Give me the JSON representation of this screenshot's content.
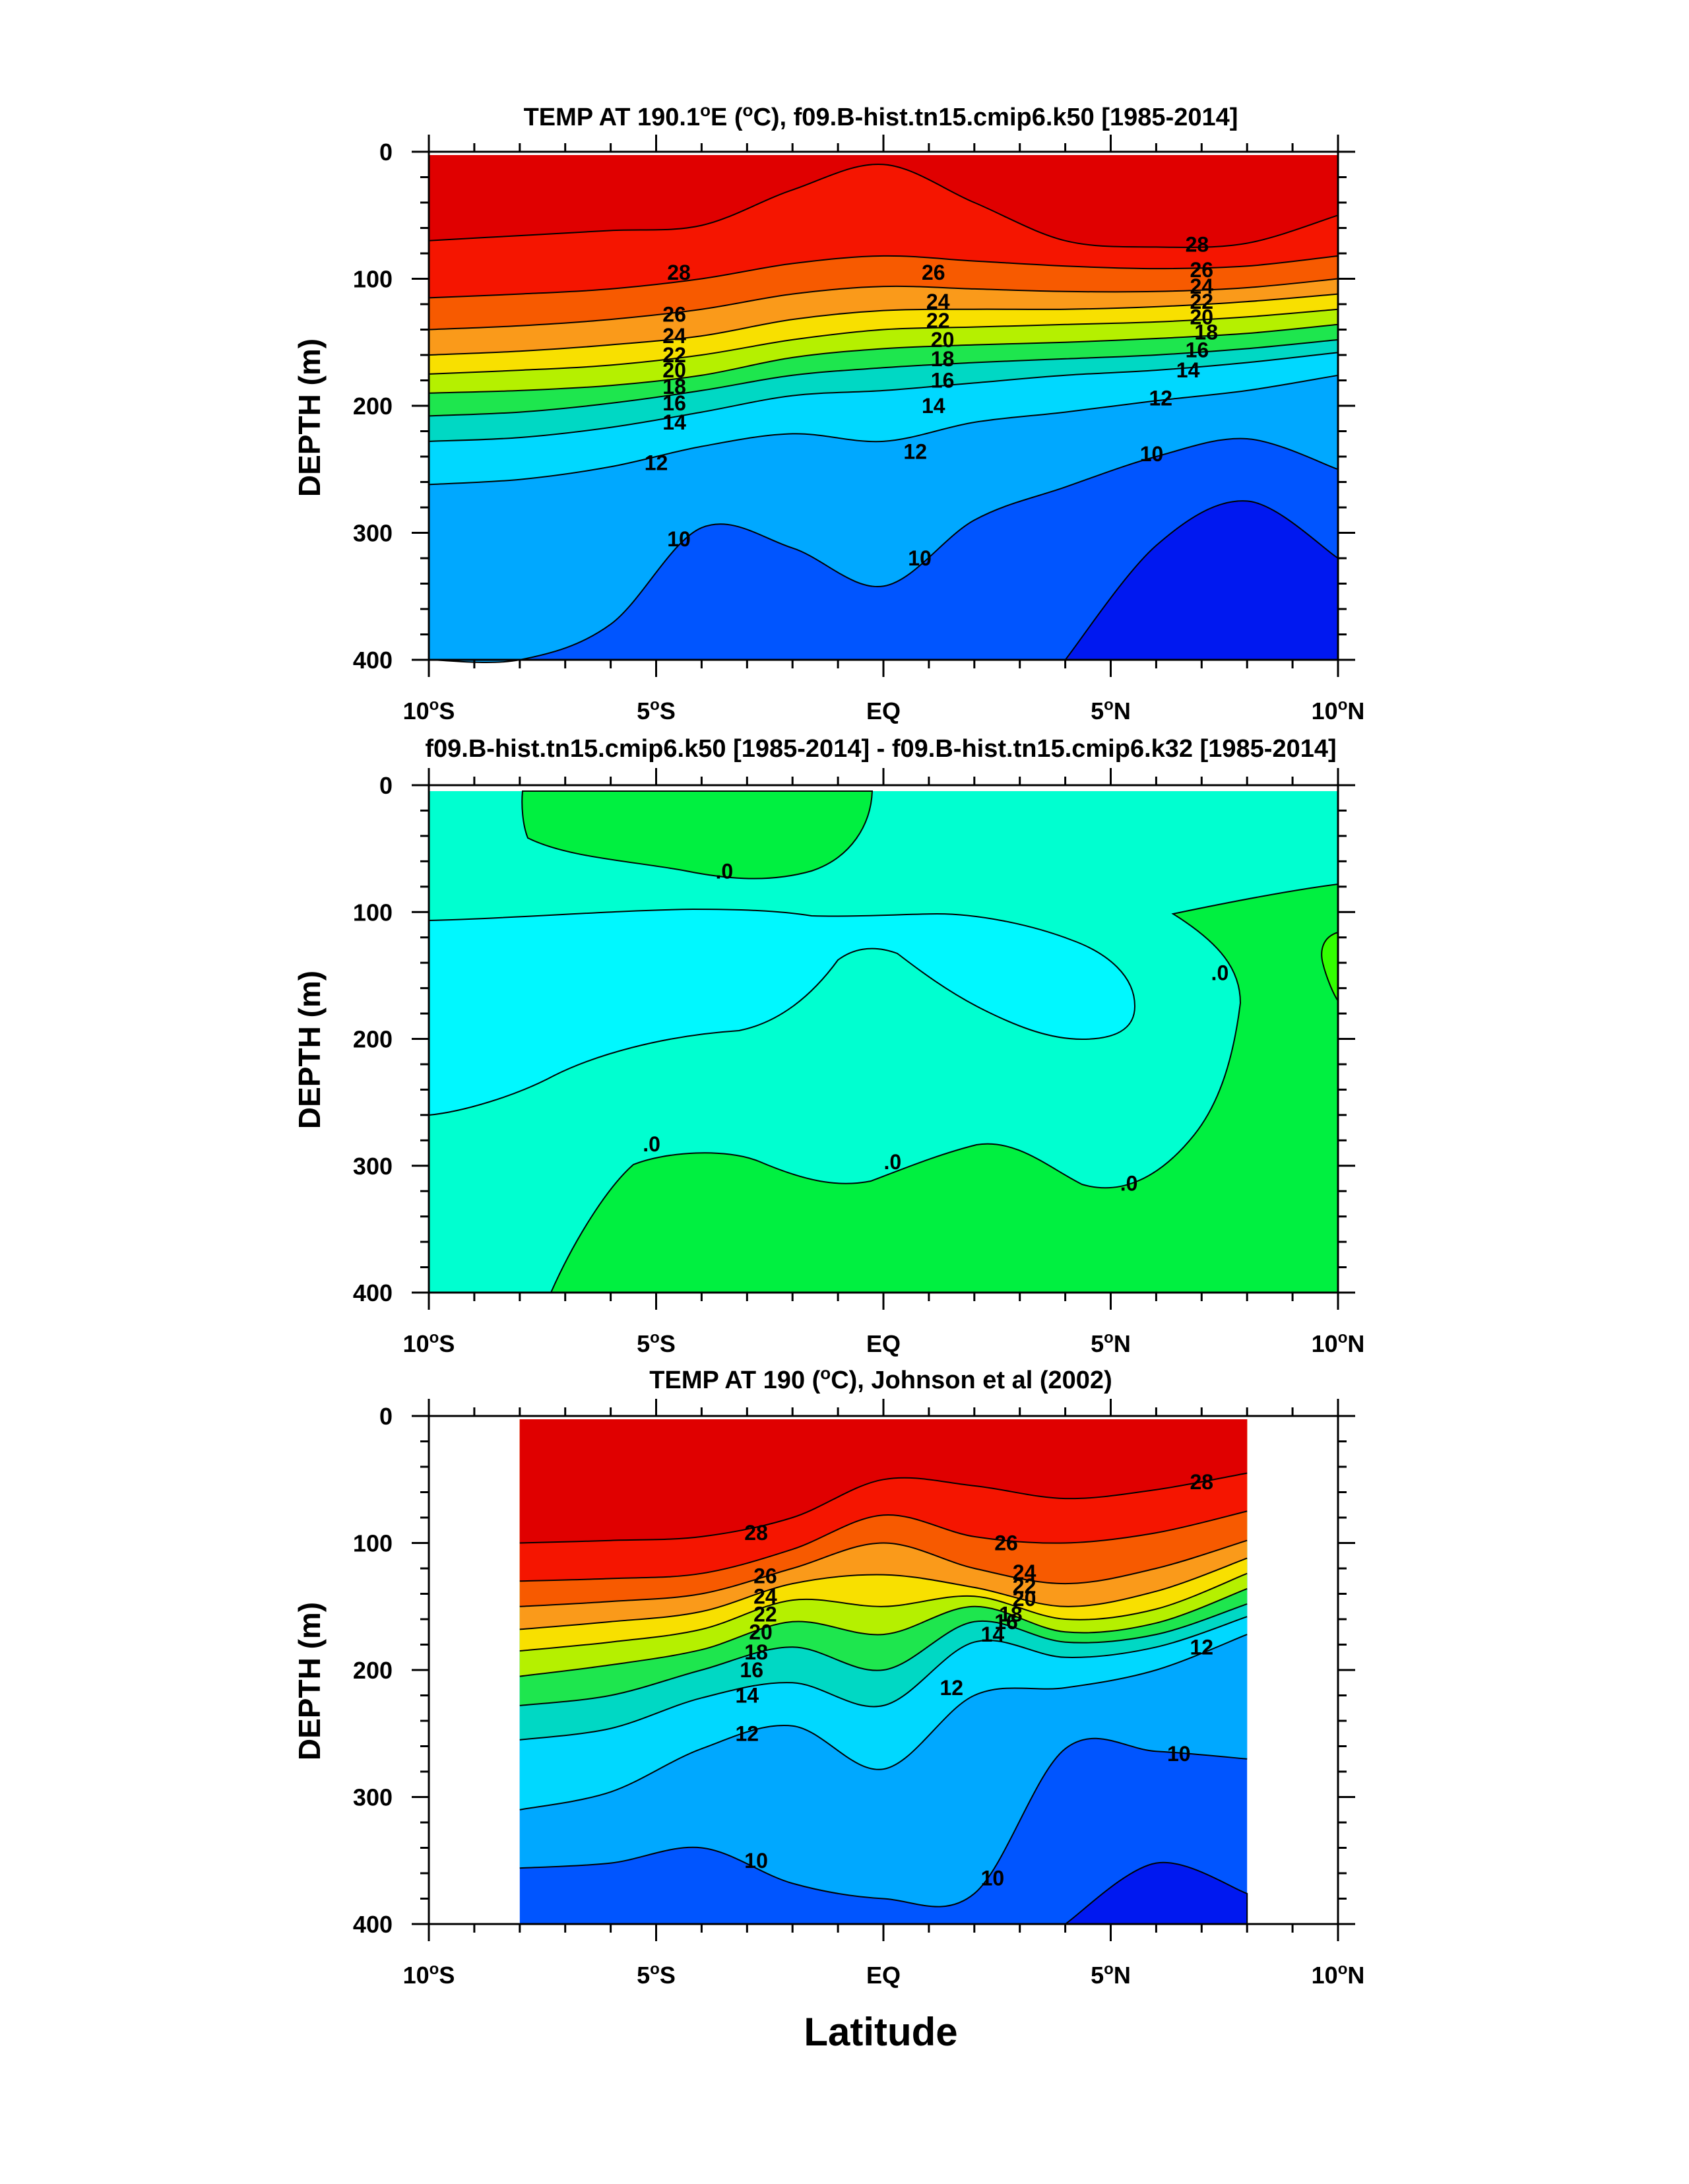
{
  "figure": {
    "xlabel": "Latitude"
  },
  "colors": {
    "t_ge_28": "#e00000",
    "t_26_28": "#f51500",
    "t_24_26": "#f75a00",
    "t_22_24": "#fa9a1a",
    "t_20_22": "#f8e000",
    "t_18_20": "#b5f000",
    "t_16_18": "#1ee64e",
    "t_14_16": "#00d8c4",
    "t_12_14": "#00d8ff",
    "t_10_12": "#00a8ff",
    "t_lt_10": "#0055ff",
    "t_deep": "#0018f0",
    "diff_pos": "#00f040",
    "diff_zero": "#00ffd0",
    "diff_neg": "#00f8ff",
    "diff_pos2": "#33ff00"
  },
  "chart_data": [
    {
      "type": "contour",
      "title_prefix": "TEMP AT 190.1",
      "title_degree": "o",
      "title_mid": "E (",
      "title_degree2": "o",
      "title_suffix": "C), f09.B-hist.tn15.cmip6.k50 [1985-2014]",
      "ylabel": "DEPTH (m)",
      "xlim": [
        -10,
        10
      ],
      "ylim": [
        400,
        0
      ],
      "xticks": [
        {
          "value": -10,
          "label": "10",
          "sup": "o",
          "suffix": "S"
        },
        {
          "value": -5,
          "label": "5",
          "sup": "o",
          "suffix": "S"
        },
        {
          "value": 0,
          "label": "EQ",
          "sup": "",
          "suffix": ""
        },
        {
          "value": 5,
          "label": "5",
          "sup": "o",
          "suffix": "N"
        },
        {
          "value": 10,
          "label": "10",
          "sup": "o",
          "suffix": "N"
        }
      ],
      "yticks": [
        0,
        100,
        200,
        300,
        400
      ],
      "contour_levels": [
        10,
        12,
        14,
        16,
        18,
        20,
        22,
        24,
        26,
        28
      ],
      "contour_labels": [
        "28",
        "26",
        "24",
        "22",
        "20",
        "18",
        "16",
        "14",
        "12",
        "10"
      ],
      "isotherms": [
        {
          "level": 28,
          "depth": [
            70,
            66,
            62,
            58,
            30,
            10,
            40,
            70,
            75,
            72,
            50
          ]
        },
        {
          "level": 26,
          "depth": [
            115,
            112,
            108,
            100,
            88,
            82,
            86,
            90,
            92,
            90,
            82
          ]
        },
        {
          "level": 24,
          "depth": [
            140,
            137,
            132,
            124,
            112,
            106,
            108,
            110,
            110,
            107,
            100
          ]
        },
        {
          "level": 22,
          "depth": [
            160,
            157,
            152,
            145,
            132,
            125,
            124,
            124,
            122,
            118,
            112
          ]
        },
        {
          "level": 20,
          "depth": [
            175,
            172,
            168,
            160,
            148,
            140,
            138,
            136,
            134,
            130,
            124
          ]
        },
        {
          "level": 18,
          "depth": [
            190,
            188,
            184,
            176,
            162,
            155,
            152,
            150,
            147,
            143,
            136
          ]
        },
        {
          "level": 16,
          "depth": [
            208,
            205,
            198,
            188,
            176,
            170,
            166,
            163,
            160,
            155,
            148
          ]
        },
        {
          "level": 14,
          "depth": [
            228,
            225,
            217,
            205,
            192,
            188,
            182,
            176,
            172,
            166,
            158
          ]
        },
        {
          "level": 12,
          "depth": [
            262,
            258,
            248,
            232,
            222,
            228,
            213,
            205,
            196,
            188,
            176
          ]
        },
        {
          "level": 10,
          "depth": [
            410,
            408,
            372,
            296,
            312,
            342,
            290,
            264,
            240,
            226,
            250
          ]
        }
      ],
      "deep_core": {
        "level": 8,
        "depth": [
          null,
          null,
          null,
          null,
          null,
          null,
          null,
          400,
          310,
          275,
          320
        ]
      },
      "label_positions": [
        {
          "text": "28",
          "lat": -4.5,
          "depth": 95
        },
        {
          "text": "26",
          "lat": -4.6,
          "depth": 128
        },
        {
          "text": "24",
          "lat": -4.6,
          "depth": 145
        },
        {
          "text": "22",
          "lat": -4.6,
          "depth": 160
        },
        {
          "text": "20",
          "lat": -4.6,
          "depth": 172
        },
        {
          "text": "18",
          "lat": -4.6,
          "depth": 185
        },
        {
          "text": "16",
          "lat": -4.6,
          "depth": 198
        },
        {
          "text": "14",
          "lat": -4.6,
          "depth": 213
        },
        {
          "text": "12",
          "lat": -5.0,
          "depth": 245
        },
        {
          "text": "10",
          "lat": -4.5,
          "depth": 305
        },
        {
          "text": "26",
          "lat": 1.1,
          "depth": 95
        },
        {
          "text": "24",
          "lat": 1.2,
          "depth": 118
        },
        {
          "text": "22",
          "lat": 1.2,
          "depth": 133
        },
        {
          "text": "20",
          "lat": 1.3,
          "depth": 148
        },
        {
          "text": "18",
          "lat": 1.3,
          "depth": 163
        },
        {
          "text": "16",
          "lat": 1.3,
          "depth": 180
        },
        {
          "text": "14",
          "lat": 1.1,
          "depth": 200
        },
        {
          "text": "12",
          "lat": 0.7,
          "depth": 236
        },
        {
          "text": "10",
          "lat": 0.8,
          "depth": 320
        },
        {
          "text": "28",
          "lat": 6.9,
          "depth": 73
        },
        {
          "text": "26",
          "lat": 7.0,
          "depth": 93
        },
        {
          "text": "24",
          "lat": 7.0,
          "depth": 106
        },
        {
          "text": "22",
          "lat": 7.0,
          "depth": 118
        },
        {
          "text": "20",
          "lat": 7.0,
          "depth": 130
        },
        {
          "text": "18",
          "lat": 7.1,
          "depth": 142
        },
        {
          "text": "16",
          "lat": 6.9,
          "depth": 156
        },
        {
          "text": "14",
          "lat": 6.7,
          "depth": 172
        },
        {
          "text": "12",
          "lat": 6.1,
          "depth": 194
        },
        {
          "text": "10",
          "lat": 5.9,
          "depth": 238
        }
      ]
    },
    {
      "type": "contour",
      "title": "f09.B-hist.tn15.cmip6.k50 [1985-2014] - f09.B-hist.tn15.cmip6.k32 [1985-2014]",
      "ylabel": "DEPTH (m)",
      "xlim": [
        -10,
        10
      ],
      "ylim": [
        400,
        0
      ],
      "xticks": [
        {
          "value": -10,
          "label": "10",
          "sup": "o",
          "suffix": "S"
        },
        {
          "value": -5,
          "label": "5",
          "sup": "o",
          "suffix": "S"
        },
        {
          "value": 0,
          "label": "EQ",
          "sup": "",
          "suffix": ""
        },
        {
          "value": 5,
          "label": "5",
          "sup": "o",
          "suffix": "N"
        },
        {
          "value": 10,
          "label": "10",
          "sup": "o",
          "suffix": "N"
        }
      ],
      "yticks": [
        0,
        100,
        200,
        300,
        400
      ],
      "contour_labels": [
        ".0",
        ".0",
        ".0",
        ".0",
        ".0"
      ],
      "label_positions": [
        {
          "text": ".0",
          "lat": -3.5,
          "depth": 68
        },
        {
          "text": ".0",
          "lat": 7.4,
          "depth": 148
        },
        {
          "text": ".0",
          "lat": -5.1,
          "depth": 283
        },
        {
          "text": ".0",
          "lat": 0.2,
          "depth": 297
        },
        {
          "text": ".0",
          "lat": 5.4,
          "depth": 314
        }
      ]
    },
    {
      "type": "contour",
      "title_prefix": "TEMP AT 190 (",
      "title_degree": "o",
      "title_suffix": "C), Johnson et al (2002)",
      "ylabel": "DEPTH (m)",
      "xlim": [
        -10,
        10
      ],
      "ylim": [
        400,
        0
      ],
      "data_xlim": [
        -8,
        8
      ],
      "xticks": [
        {
          "value": -10,
          "label": "10",
          "sup": "o",
          "suffix": "S"
        },
        {
          "value": -5,
          "label": "5",
          "sup": "o",
          "suffix": "S"
        },
        {
          "value": 0,
          "label": "EQ",
          "sup": "",
          "suffix": ""
        },
        {
          "value": 5,
          "label": "5",
          "sup": "o",
          "suffix": "N"
        },
        {
          "value": 10,
          "label": "10",
          "sup": "o",
          "suffix": "N"
        }
      ],
      "yticks": [
        0,
        100,
        200,
        300,
        400
      ],
      "contour_levels": [
        10,
        12,
        14,
        16,
        18,
        20,
        22,
        24,
        26,
        28
      ],
      "contour_labels": [
        "28",
        "26",
        "24",
        "22",
        "20",
        "18",
        "16",
        "14",
        "12",
        "10"
      ],
      "isotherms_lat": [
        -8,
        -6,
        -4,
        -2,
        0,
        2,
        4,
        6,
        8
      ],
      "isotherms": [
        {
          "level": 28,
          "depth": [
            100,
            98,
            95,
            80,
            50,
            55,
            65,
            58,
            45
          ]
        },
        {
          "level": 26,
          "depth": [
            130,
            128,
            124,
            105,
            78,
            95,
            100,
            92,
            75
          ]
        },
        {
          "level": 24,
          "depth": [
            150,
            146,
            140,
            120,
            100,
            120,
            132,
            120,
            98
          ]
        },
        {
          "level": 22,
          "depth": [
            168,
            162,
            154,
            132,
            125,
            135,
            150,
            138,
            112
          ]
        },
        {
          "level": 20,
          "depth": [
            185,
            178,
            168,
            145,
            150,
            142,
            160,
            152,
            124
          ]
        },
        {
          "level": 18,
          "depth": [
            205,
            196,
            184,
            162,
            172,
            150,
            170,
            163,
            136
          ]
        },
        {
          "level": 16,
          "depth": [
            228,
            220,
            200,
            182,
            200,
            162,
            178,
            172,
            148
          ]
        },
        {
          "level": 14,
          "depth": [
            255,
            246,
            222,
            210,
            228,
            178,
            190,
            182,
            158
          ]
        },
        {
          "level": 12,
          "depth": [
            310,
            296,
            262,
            244,
            278,
            220,
            214,
            200,
            172
          ]
        },
        {
          "level": 10,
          "depth": [
            356,
            352,
            340,
            368,
            380,
            376,
            262,
            264,
            270
          ]
        }
      ],
      "deep_core": {
        "level": 8,
        "depth": [
          null,
          null,
          null,
          null,
          null,
          null,
          400,
          352,
          376
        ]
      },
      "label_positions": [
        {
          "text": "28",
          "lat": -2.8,
          "depth": 92
        },
        {
          "text": "26",
          "lat": -2.6,
          "depth": 126
        },
        {
          "text": "24",
          "lat": -2.6,
          "depth": 142
        },
        {
          "text": "22",
          "lat": -2.6,
          "depth": 156
        },
        {
          "text": "20",
          "lat": -2.7,
          "depth": 170
        },
        {
          "text": "18",
          "lat": -2.8,
          "depth": 186
        },
        {
          "text": "16",
          "lat": -2.9,
          "depth": 200
        },
        {
          "text": "14",
          "lat": -3.0,
          "depth": 220
        },
        {
          "text": "12",
          "lat": -3.0,
          "depth": 250
        },
        {
          "text": "10",
          "lat": -2.8,
          "depth": 350
        },
        {
          "text": "26",
          "lat": 2.7,
          "depth": 100
        },
        {
          "text": "24",
          "lat": 3.1,
          "depth": 123
        },
        {
          "text": "22",
          "lat": 3.1,
          "depth": 134
        },
        {
          "text": "20",
          "lat": 3.1,
          "depth": 144
        },
        {
          "text": "18",
          "lat": 2.8,
          "depth": 156
        },
        {
          "text": "16",
          "lat": 2.7,
          "depth": 162
        },
        {
          "text": "14",
          "lat": 2.4,
          "depth": 172
        },
        {
          "text": "12",
          "lat": 1.5,
          "depth": 214
        },
        {
          "text": "10",
          "lat": 2.4,
          "depth": 364
        },
        {
          "text": "28",
          "lat": 7.0,
          "depth": 52
        },
        {
          "text": "12",
          "lat": 7.0,
          "depth": 182
        },
        {
          "text": "10",
          "lat": 6.5,
          "depth": 266
        }
      ]
    }
  ]
}
